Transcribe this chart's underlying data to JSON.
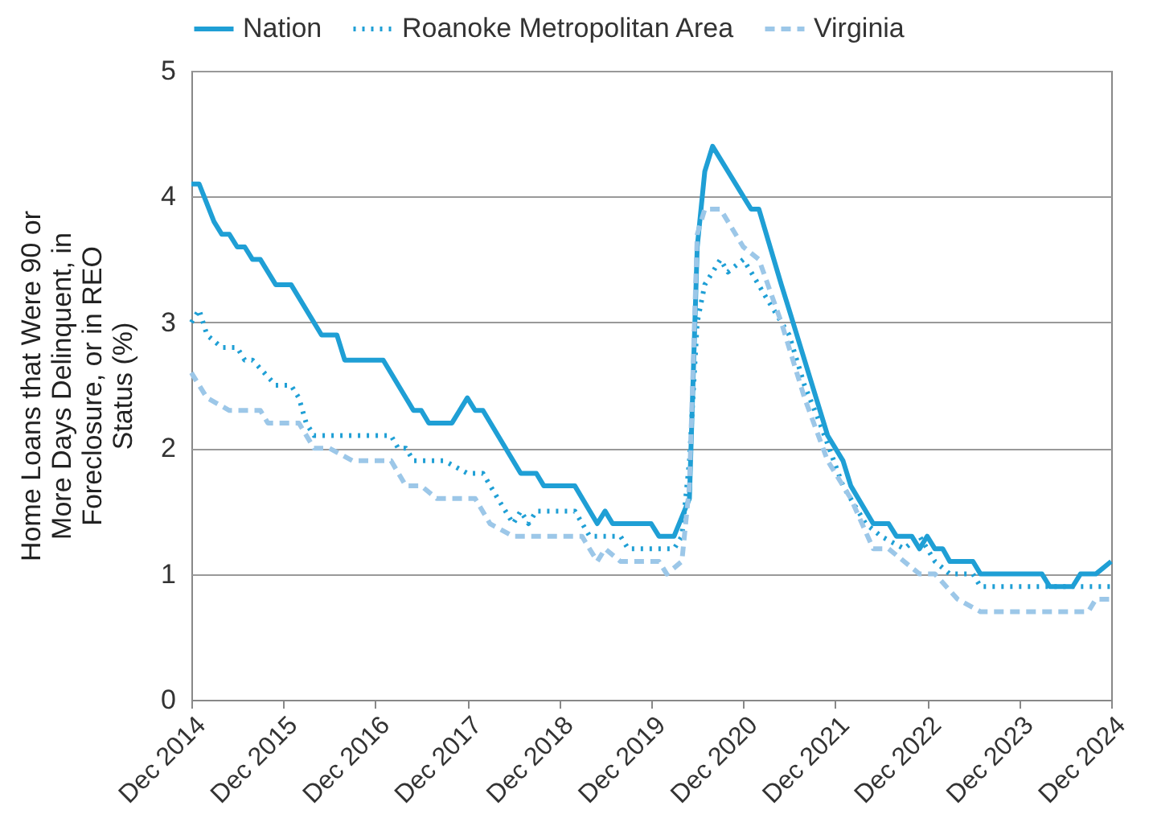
{
  "chart_data": {
    "type": "line",
    "ylabel": "Home Loans that Were 90 or More Days Delinquent, in Foreclosure, or in REO Status (%)",
    "xlim": [
      "2014-12",
      "2024-12"
    ],
    "xticks": [
      {
        "value": "2014-12",
        "label": "Dec 2014"
      },
      {
        "value": "2015-12",
        "label": "Dec 2015"
      },
      {
        "value": "2016-12",
        "label": "Dec 2016"
      },
      {
        "value": "2017-12",
        "label": "Dec 2017"
      },
      {
        "value": "2018-12",
        "label": "Dec 2018"
      },
      {
        "value": "2019-12",
        "label": "Dec 2019"
      },
      {
        "value": "2020-12",
        "label": "Dec 2020"
      },
      {
        "value": "2021-12",
        "label": "Dec 2021"
      },
      {
        "value": "2022-12",
        "label": "Dec 2022"
      },
      {
        "value": "2023-12",
        "label": "Dec 2023"
      },
      {
        "value": "2024-12",
        "label": "Dec 2024"
      }
    ],
    "ylim": [
      0,
      5
    ],
    "yticks": [
      0,
      1,
      2,
      3,
      4,
      5
    ],
    "grid": "y",
    "legend": "top",
    "marker": "none",
    "series": [
      {
        "name": "Nation",
        "color": "#1f9fd5",
        "line_style": "solid",
        "x": [
          "2014-12",
          "2015-01",
          "2015-03",
          "2015-04",
          "2015-05",
          "2015-06",
          "2015-07",
          "2015-08",
          "2015-09",
          "2015-11",
          "2016-01",
          "2016-05",
          "2016-07",
          "2016-08",
          "2017-01",
          "2017-05",
          "2017-06",
          "2017-07",
          "2017-10",
          "2017-12",
          "2018-01",
          "2018-02",
          "2018-07",
          "2018-09",
          "2018-10",
          "2019-02",
          "2019-05",
          "2019-06",
          "2019-07",
          "2019-12",
          "2020-01",
          "2020-03",
          "2020-05",
          "2020-06",
          "2020-07",
          "2020-08",
          "2021-01",
          "2021-02",
          "2021-05",
          "2021-06",
          "2021-11",
          "2022-01",
          "2022-02",
          "2022-05",
          "2022-07",
          "2022-08",
          "2022-10",
          "2022-11",
          "2022-12",
          "2023-01",
          "2023-02",
          "2023-03",
          "2023-06",
          "2023-07",
          "2024-03",
          "2024-04",
          "2024-07",
          "2024-08",
          "2024-10",
          "2024-12"
        ],
        "values": [
          4.1,
          4.1,
          3.8,
          3.7,
          3.7,
          3.6,
          3.6,
          3.5,
          3.5,
          3.3,
          3.3,
          2.9,
          2.9,
          2.7,
          2.7,
          2.3,
          2.3,
          2.2,
          2.2,
          2.4,
          2.3,
          2.3,
          1.8,
          1.8,
          1.7,
          1.7,
          1.4,
          1.5,
          1.4,
          1.4,
          1.3,
          1.3,
          1.6,
          3.6,
          4.2,
          4.4,
          3.9,
          3.9,
          3.3,
          3.1,
          2.1,
          1.9,
          1.7,
          1.4,
          1.4,
          1.3,
          1.3,
          1.2,
          1.3,
          1.2,
          1.2,
          1.1,
          1.1,
          1.0,
          1.0,
          0.9,
          0.9,
          1.0,
          1.0,
          1.1
        ]
      },
      {
        "name": "Roanoke Metropolitan Area",
        "color": "#1f9fd5",
        "line_style": "dotted",
        "x": [
          "2014-12",
          "2015-01",
          "2015-02",
          "2015-04",
          "2015-06",
          "2015-07",
          "2015-08",
          "2015-11",
          "2016-01",
          "2016-02",
          "2016-03",
          "2016-04",
          "2017-02",
          "2017-03",
          "2017-04",
          "2017-05",
          "2017-09",
          "2017-12",
          "2018-02",
          "2018-04",
          "2018-06",
          "2018-07",
          "2018-08",
          "2018-09",
          "2019-02",
          "2019-04",
          "2019-08",
          "2019-09",
          "2020-03",
          "2020-04",
          "2020-05",
          "2020-06",
          "2020-07",
          "2020-08",
          "2020-09",
          "2020-10",
          "2020-12",
          "2021-01",
          "2021-03",
          "2021-06",
          "2021-08",
          "2021-10",
          "2022-01",
          "2022-04",
          "2022-06",
          "2022-09",
          "2022-11",
          "2023-01",
          "2023-03",
          "2023-06",
          "2023-07",
          "2024-10",
          "2024-12"
        ],
        "values": [
          3.0,
          3.1,
          2.9,
          2.8,
          2.8,
          2.7,
          2.7,
          2.5,
          2.5,
          2.4,
          2.2,
          2.1,
          2.1,
          2.0,
          2.0,
          1.9,
          1.9,
          1.8,
          1.8,
          1.6,
          1.4,
          1.5,
          1.4,
          1.5,
          1.5,
          1.3,
          1.3,
          1.2,
          1.2,
          1.3,
          1.9,
          3.0,
          3.3,
          3.4,
          3.5,
          3.4,
          3.5,
          3.4,
          3.2,
          2.9,
          2.5,
          2.2,
          1.7,
          1.4,
          1.3,
          1.2,
          1.3,
          1.1,
          1.0,
          1.0,
          0.9,
          0.9,
          0.9
        ]
      },
      {
        "name": "Virginia",
        "color": "#9cc7e8",
        "line_style": "dashed",
        "x": [
          "2014-12",
          "2015-02",
          "2015-05",
          "2015-09",
          "2015-10",
          "2016-02",
          "2016-04",
          "2016-06",
          "2016-09",
          "2017-02",
          "2017-04",
          "2017-06",
          "2017-08",
          "2018-01",
          "2018-03",
          "2018-06",
          "2019-03",
          "2019-05",
          "2019-06",
          "2019-08",
          "2020-01",
          "2020-02",
          "2020-04",
          "2020-05",
          "2020-06",
          "2020-07",
          "2020-09",
          "2020-12",
          "2021-02",
          "2021-05",
          "2021-08",
          "2021-11",
          "2022-02",
          "2022-05",
          "2022-07",
          "2022-11",
          "2023-01",
          "2023-04",
          "2023-07",
          "2024-09",
          "2024-10",
          "2024-12"
        ],
        "values": [
          2.6,
          2.4,
          2.3,
          2.3,
          2.2,
          2.2,
          2.0,
          2.0,
          1.9,
          1.9,
          1.7,
          1.7,
          1.6,
          1.6,
          1.4,
          1.3,
          1.3,
          1.1,
          1.2,
          1.1,
          1.1,
          1.0,
          1.1,
          1.7,
          3.7,
          3.9,
          3.9,
          3.6,
          3.5,
          3.0,
          2.4,
          1.9,
          1.6,
          1.2,
          1.2,
          1.0,
          1.0,
          0.8,
          0.7,
          0.7,
          0.8,
          0.8
        ]
      }
    ]
  }
}
